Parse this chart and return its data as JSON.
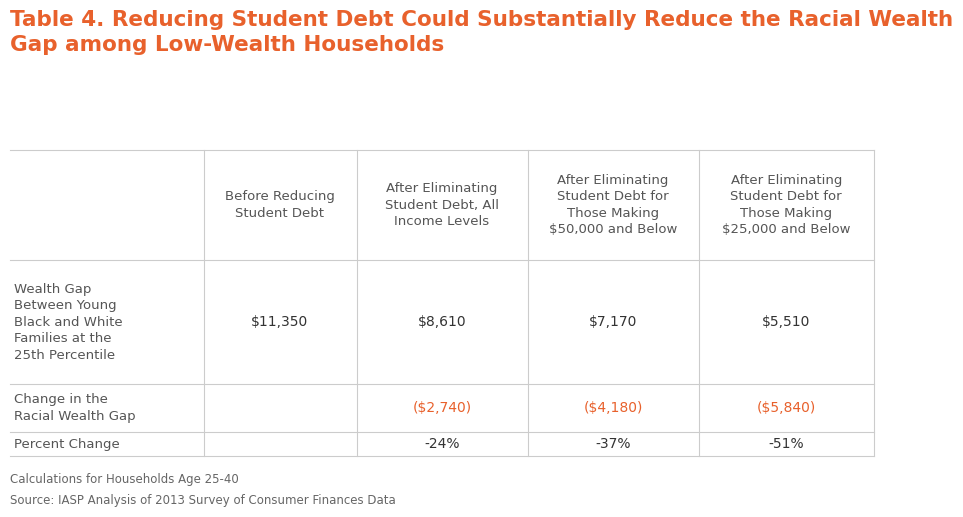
{
  "title": "Table 4. Reducing Student Debt Could Substantially Reduce the Racial Wealth\nGap among Low-Wealth Households",
  "title_color": "#E8612C",
  "title_fontsize": 15.5,
  "background_color": "#FFFFFF",
  "col_headers": [
    "Before Reducing\nStudent Debt",
    "After Eliminating\nStudent Debt, All\nIncome Levels",
    "After Eliminating\nStudent Debt for\nThose Making\n$50,000 and Below",
    "After Eliminating\nStudent Debt for\nThose Making\n$25,000 and Below"
  ],
  "row_labels": [
    "Wealth Gap\nBetween Young\nBlack and White\nFamilies at the\n25th Percentile",
    "Change in the\nRacial Wealth Gap",
    "Percent Change"
  ],
  "row1_values": [
    "$11,350",
    "$8,610",
    "$7,170",
    "$5,510"
  ],
  "row2_values": [
    "",
    "($2,740)",
    "($4,180)",
    "($5,840)"
  ],
  "row3_values": [
    "",
    "-24%",
    "-37%",
    "-51%"
  ],
  "row2_colors": [
    "#333333",
    "#E8612C",
    "#E8612C",
    "#E8612C"
  ],
  "row3_colors": [
    "#333333",
    "#333333",
    "#333333",
    "#333333"
  ],
  "footnote1": "Calculations for Households Age 25-40",
  "footnote2": "Source: IASP Analysis of 2013 Survey of Consumer Finances Data",
  "line_color": "#CCCCCC",
  "header_text_color": "#555555",
  "row_label_color": "#555555",
  "cell_text_color": "#333333",
  "col_bounds": [
    0.03,
    0.245,
    0.415,
    0.605,
    0.795,
    0.99
  ],
  "row_bounds": [
    0.7,
    0.495,
    0.265,
    0.175,
    0.13
  ]
}
